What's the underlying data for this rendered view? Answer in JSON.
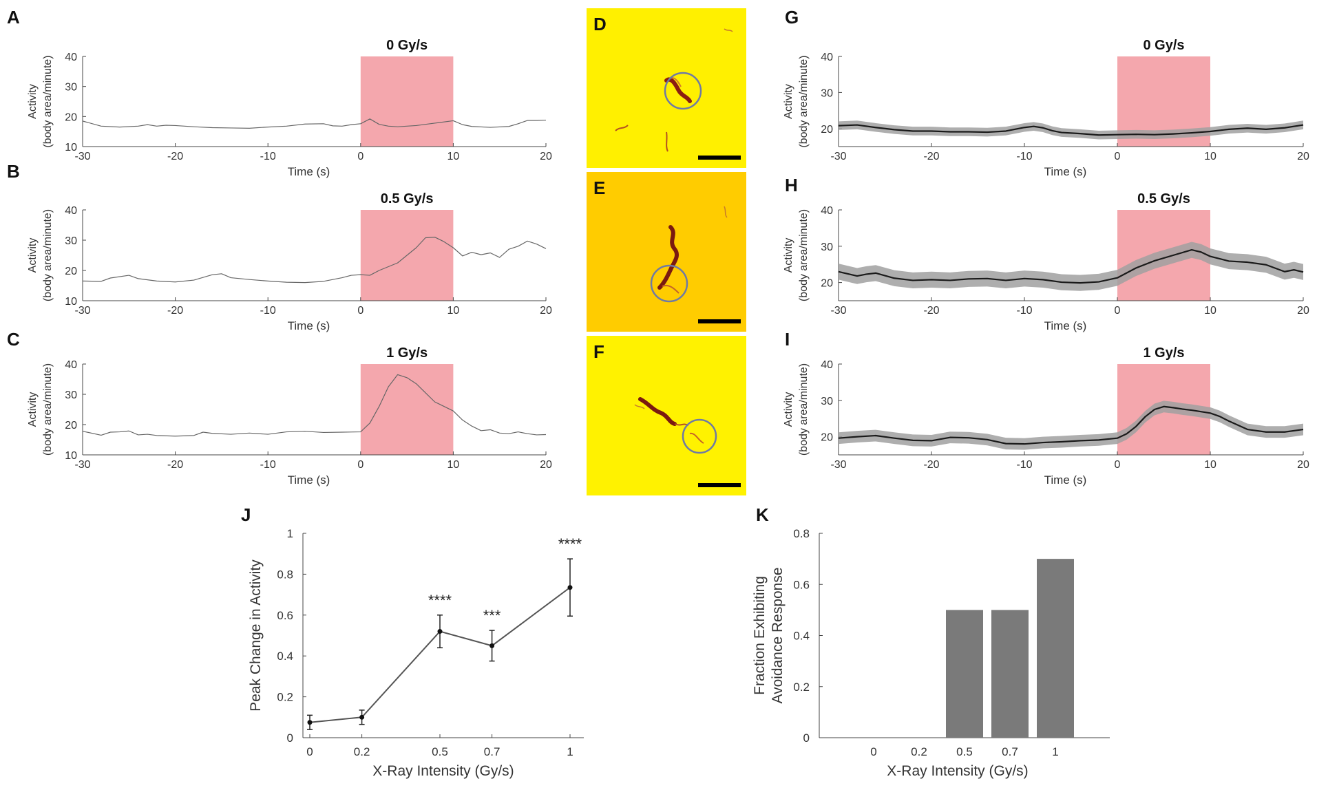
{
  "panel_labels": {
    "A": "A",
    "B": "B",
    "C": "C",
    "D": "D",
    "E": "E",
    "F": "F",
    "G": "G",
    "H": "H",
    "I": "I",
    "J": "J",
    "K": "K"
  },
  "colors": {
    "exposure": "#f4a7ad",
    "line": "#666666",
    "mean_line": "#1a1a1a",
    "sem_band": "#a0a0a0",
    "bar": "#7a7a7a",
    "worm_bg_D": "#fff000",
    "worm_bg_E": "#ffcc00",
    "worm_bg_F": "#fff200"
  },
  "chart_data": [
    {
      "id": "A",
      "type": "line",
      "title": "0 Gy/s",
      "xlabel": "Time (s)",
      "ylabel": [
        "Activity",
        "(body area/minute)"
      ],
      "xlim": [
        -30,
        20
      ],
      "ylim": [
        10,
        40
      ],
      "xticks": [
        -30,
        -20,
        -10,
        0,
        10,
        20
      ],
      "yticks": [
        10,
        20,
        30,
        40
      ],
      "exposure_window": [
        0,
        10
      ],
      "x": [
        -30,
        -28,
        -26,
        -24,
        -23,
        -22,
        -21,
        -20,
        -18,
        -16,
        -14,
        -12,
        -10,
        -8,
        -6,
        -4,
        -3,
        -2,
        -1,
        0,
        1,
        2,
        3,
        4,
        6,
        8,
        10,
        11,
        12,
        14,
        16,
        17,
        18,
        19,
        20
      ],
      "y": [
        18.5,
        16.8,
        16.5,
        16.8,
        17.3,
        16.8,
        17.1,
        17.0,
        16.6,
        16.3,
        16.2,
        16.1,
        16.5,
        16.8,
        17.5,
        17.6,
        16.9,
        16.8,
        17.3,
        17.6,
        19.2,
        17.4,
        16.8,
        16.6,
        17.0,
        17.8,
        18.6,
        17.3,
        16.7,
        16.4,
        16.7,
        17.6,
        18.7,
        18.7,
        18.8
      ]
    },
    {
      "id": "B",
      "type": "line",
      "title": "0.5 Gy/s",
      "xlabel": "Time (s)",
      "ylabel": [
        "Activity",
        "(body area/minute)"
      ],
      "xlim": [
        -30,
        20
      ],
      "ylim": [
        10,
        40
      ],
      "xticks": [
        -30,
        -20,
        -10,
        0,
        10,
        20
      ],
      "yticks": [
        10,
        20,
        30,
        40
      ],
      "exposure_window": [
        0,
        10
      ],
      "x": [
        -30,
        -28,
        -27,
        -25,
        -24,
        -22,
        -20,
        -18,
        -16,
        -15,
        -14,
        -12,
        -10,
        -8,
        -6,
        -4,
        -2,
        -1,
        0,
        1,
        2,
        4,
        5,
        6,
        7,
        8,
        9,
        10,
        11,
        12,
        13,
        14,
        15,
        16,
        17,
        18,
        19,
        20
      ],
      "y": [
        16.5,
        16.4,
        17.5,
        18.4,
        17.3,
        16.5,
        16.2,
        16.8,
        18.6,
        18.9,
        17.6,
        17.0,
        16.5,
        16.1,
        16.0,
        16.4,
        17.6,
        18.4,
        18.6,
        18.4,
        20.0,
        22.5,
        25.0,
        27.5,
        30.8,
        31.0,
        29.5,
        27.5,
        24.8,
        26.0,
        25.2,
        25.8,
        24.3,
        27.0,
        28.0,
        29.7,
        28.7,
        27.2
      ]
    },
    {
      "id": "C",
      "type": "line",
      "title": "1 Gy/s",
      "xlabel": "Time (s)",
      "ylabel": [
        "Activity",
        "(body area/minute)"
      ],
      "xlim": [
        -30,
        20
      ],
      "ylim": [
        10,
        40
      ],
      "xticks": [
        -30,
        -20,
        -10,
        0,
        10,
        20
      ],
      "yticks": [
        10,
        20,
        30,
        40
      ],
      "exposure_window": [
        0,
        10
      ],
      "x": [
        -30,
        -28,
        -27,
        -26,
        -25,
        -24,
        -23,
        -22,
        -20,
        -18,
        -17,
        -16,
        -14,
        -12,
        -10,
        -8,
        -6,
        -4,
        -2,
        0,
        1,
        2,
        3,
        4,
        5,
        6,
        7,
        8,
        9,
        10,
        11,
        12,
        13,
        14,
        15,
        16,
        17,
        18,
        19,
        20
      ],
      "y": [
        17.8,
        16.5,
        17.5,
        17.6,
        17.9,
        16.6,
        16.8,
        16.4,
        16.2,
        16.4,
        17.5,
        17.1,
        16.8,
        17.2,
        16.8,
        17.6,
        17.8,
        17.4,
        17.5,
        17.6,
        20.5,
        26.0,
        32.5,
        36.5,
        35.5,
        33.5,
        30.5,
        27.5,
        26.0,
        24.5,
        21.5,
        19.5,
        18.0,
        18.3,
        17.2,
        17.0,
        17.6,
        17.0,
        16.6,
        16.7
      ]
    },
    {
      "id": "G",
      "type": "line",
      "title": "0 Gy/s",
      "xlabel": "Time (s)",
      "ylabel": [
        "Activity",
        "(body area/minute)"
      ],
      "xlim": [
        -30,
        20
      ],
      "ylim": [
        15,
        40
      ],
      "xticks": [
        -30,
        -20,
        -10,
        0,
        10,
        20
      ],
      "yticks": [
        20,
        30,
        40
      ],
      "exposure_window": [
        0,
        10
      ],
      "x": [
        -30,
        -28,
        -26,
        -24,
        -22,
        -20,
        -18,
        -16,
        -14,
        -12,
        -10,
        -9,
        -8,
        -7,
        -6,
        -4,
        -2,
        0,
        2,
        4,
        6,
        8,
        10,
        12,
        14,
        16,
        18,
        20
      ],
      "y": [
        20.8,
        21.0,
        20.3,
        19.7,
        19.3,
        19.3,
        19.1,
        19.1,
        19.0,
        19.3,
        20.3,
        20.6,
        20.2,
        19.4,
        18.9,
        18.6,
        18.2,
        18.3,
        18.4,
        18.3,
        18.5,
        18.8,
        19.2,
        19.8,
        20.1,
        19.8,
        20.2,
        21.0
      ],
      "sem": 1.2
    },
    {
      "id": "H",
      "type": "line",
      "title": "0.5 Gy/s",
      "xlabel": "Time (s)",
      "ylabel": [
        "Activity",
        "(body area/minute)"
      ],
      "xlim": [
        -30,
        20
      ],
      "ylim": [
        15,
        40
      ],
      "xticks": [
        -30,
        -20,
        -10,
        0,
        10,
        20
      ],
      "yticks": [
        20,
        30,
        40
      ],
      "exposure_window": [
        0,
        10
      ],
      "x": [
        -30,
        -28,
        -27,
        -26,
        -24,
        -22,
        -20,
        -18,
        -16,
        -14,
        -12,
        -10,
        -8,
        -6,
        -4,
        -2,
        0,
        2,
        4,
        6,
        8,
        9,
        10,
        12,
        14,
        16,
        18,
        19,
        20
      ],
      "y": [
        23.0,
        21.8,
        22.3,
        22.6,
        21.2,
        20.6,
        20.8,
        20.6,
        21.0,
        21.1,
        20.6,
        21.1,
        20.8,
        20.1,
        19.9,
        20.2,
        21.3,
        24.0,
        26.0,
        27.5,
        29.0,
        28.4,
        27.2,
        25.9,
        25.6,
        24.9,
        23.0,
        23.5,
        22.9
      ],
      "sem": 2.2
    },
    {
      "id": "I",
      "type": "line",
      "title": "1 Gy/s",
      "xlabel": "Time (s)",
      "ylabel": [
        "Activity",
        "(body area/minute)"
      ],
      "xlim": [
        -30,
        20
      ],
      "ylim": [
        15,
        40
      ],
      "xticks": [
        -30,
        -20,
        -10,
        0,
        10,
        20
      ],
      "yticks": [
        20,
        30,
        40
      ],
      "exposure_window": [
        0,
        10
      ],
      "x": [
        -30,
        -28,
        -26,
        -24,
        -22,
        -20,
        -18,
        -16,
        -14,
        -12,
        -10,
        -8,
        -6,
        -4,
        -2,
        0,
        1,
        2,
        3,
        4,
        5,
        6,
        7,
        8,
        9,
        10,
        11,
        12,
        14,
        16,
        18,
        20
      ],
      "y": [
        19.6,
        20.0,
        20.3,
        19.6,
        19.0,
        18.9,
        19.8,
        19.7,
        19.2,
        18.1,
        18.0,
        18.4,
        18.6,
        18.9,
        19.1,
        19.6,
        20.8,
        22.8,
        25.5,
        27.5,
        28.3,
        28.0,
        27.6,
        27.3,
        26.9,
        26.5,
        25.6,
        24.3,
        22.0,
        21.3,
        21.3,
        22.0
      ],
      "sem": 1.6
    },
    {
      "id": "J",
      "type": "line",
      "xlabel": "X-Ray Intensity (Gy/s)",
      "ylabel": [
        "Peak Change in Activity"
      ],
      "ylim": [
        0,
        1
      ],
      "xticks": [
        0,
        0.2,
        0.5,
        0.7,
        1
      ],
      "yticks": [
        0,
        0.2,
        0.4,
        0.6,
        0.8,
        1
      ],
      "ytick_labels": [
        "0",
        "0.2",
        "0.4",
        "0.6",
        "0.8",
        "1"
      ],
      "x": [
        0,
        0.2,
        0.5,
        0.7,
        1
      ],
      "xtick_labels": [
        "0",
        "0.2",
        "0.5",
        "0.7",
        "1"
      ],
      "y": [
        0.075,
        0.1,
        0.52,
        0.45,
        0.735
      ],
      "err": [
        0.035,
        0.035,
        0.08,
        0.075,
        0.14
      ],
      "annotations": [
        "",
        "",
        "****",
        "***",
        "****"
      ]
    },
    {
      "id": "K",
      "type": "bar",
      "xlabel": "X-Ray Intensity (Gy/s)",
      "ylabel": [
        "Fraction Exhibiting",
        "Avoidance Response"
      ],
      "ylim": [
        0,
        0.8
      ],
      "yticks": [
        0,
        0.2,
        0.4,
        0.6,
        0.8
      ],
      "ytick_labels": [
        "0",
        "0.2",
        "0.4",
        "0.6",
        "0.8"
      ],
      "categories": [
        "0",
        "0.2",
        "0.5",
        "0.7",
        "1"
      ],
      "values": [
        0,
        0,
        0.5,
        0.5,
        0.7
      ]
    }
  ]
}
